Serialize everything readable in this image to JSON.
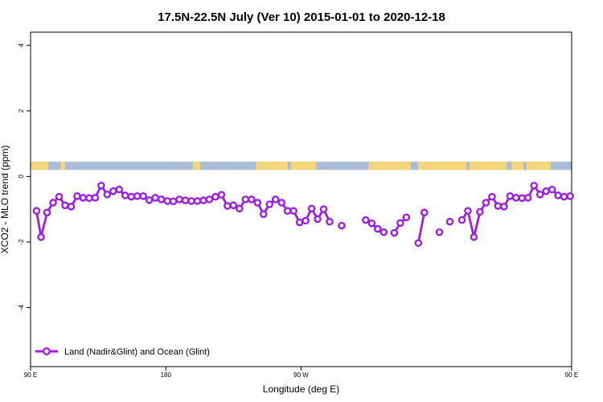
{
  "chart_data": {
    "type": "line",
    "title": "17.5N-22.5N July (Ver 10)   2015-01-01 to 2020-12-18",
    "xlabel": "Longitude (deg E)",
    "ylabel": "XCO2 - MLO trend (ppm)",
    "xlim": [
      90,
      450
    ],
    "ylim": [
      -5.8,
      4.4
    ],
    "xticks": [
      {
        "value": 90,
        "label": "90 E"
      },
      {
        "value": 180,
        "label": "180"
      },
      {
        "value": 270,
        "label": "90 W"
      },
      {
        "value": 450,
        "label": "90 E"
      },
      {
        "value": 540,
        "label": "180"
      }
    ],
    "yticks": [
      {
        "value": 4,
        "label": "4"
      },
      {
        "value": 2,
        "label": "2"
      },
      {
        "value": 0,
        "label": "0"
      },
      {
        "value": -2,
        "label": "-2"
      },
      {
        "value": -4,
        "label": "-4"
      }
    ],
    "colors": {
      "series": "#9b1fe8",
      "land": "#f5d67a",
      "ocean": "#a9bcd8"
    },
    "land_ocean_strip": {
      "y_range": [
        0.2,
        0.45
      ],
      "land_segments": [
        [
          90,
          102
        ],
        [
          110,
          113
        ],
        [
          198,
          203
        ],
        [
          240,
          261
        ],
        [
          263,
          280
        ],
        [
          315,
          332
        ],
        [
          332,
          343
        ],
        [
          348,
          355
        ],
        [
          355,
          380
        ],
        [
          382,
          407
        ],
        [
          410,
          418
        ],
        [
          420,
          436
        ]
      ]
    },
    "series": [
      {
        "name": "Land (Nadir&Glint) and Ocean (Glint)",
        "segments": [
          [
            [
              94,
              -1.05
            ],
            [
              97,
              -1.85
            ],
            [
              101,
              -1.1
            ],
            [
              105,
              -0.8
            ],
            [
              109,
              -0.62
            ],
            [
              113,
              -0.88
            ],
            [
              117,
              -0.92
            ],
            [
              121,
              -0.6
            ],
            [
              125,
              -0.65
            ],
            [
              129,
              -0.66
            ],
            [
              133,
              -0.65
            ],
            [
              137,
              -0.28
            ],
            [
              141,
              -0.55
            ],
            [
              145,
              -0.45
            ],
            [
              149,
              -0.4
            ],
            [
              153,
              -0.58
            ],
            [
              157,
              -0.62
            ],
            [
              161,
              -0.6
            ],
            [
              165,
              -0.6
            ],
            [
              169,
              -0.72
            ],
            [
              173,
              -0.65
            ],
            [
              177,
              -0.7
            ],
            [
              181,
              -0.75
            ],
            [
              185,
              -0.76
            ],
            [
              189,
              -0.7
            ],
            [
              193,
              -0.73
            ],
            [
              197,
              -0.75
            ],
            [
              201,
              -0.75
            ],
            [
              205,
              -0.73
            ],
            [
              209,
              -0.7
            ],
            [
              213,
              -0.62
            ],
            [
              217,
              -0.56
            ],
            [
              221,
              -0.9
            ],
            [
              225,
              -0.88
            ],
            [
              229,
              -0.98
            ],
            [
              233,
              -0.7
            ],
            [
              237,
              -0.7
            ],
            [
              241,
              -0.8
            ],
            [
              245,
              -1.15
            ],
            [
              249,
              -0.85
            ],
            [
              253,
              -0.7
            ],
            [
              257,
              -0.8
            ],
            [
              261,
              -1.05
            ],
            [
              265,
              -1.05
            ],
            [
              269,
              -1.4
            ],
            [
              273,
              -1.35
            ],
            [
              277,
              -0.98
            ],
            [
              281,
              -1.3
            ],
            [
              285,
              -1.0
            ],
            [
              289,
              -1.38
            ]
          ],
          [
            [
              297,
              -1.5
            ]
          ],
          [
            [
              313,
              -1.33
            ],
            [
              317,
              -1.43
            ],
            [
              321,
              -1.6
            ],
            [
              325,
              -1.7
            ]
          ],
          [
            [
              332,
              -1.72
            ],
            [
              336,
              -1.42
            ],
            [
              340,
              -1.25
            ]
          ],
          [
            [
              348,
              -2.03
            ],
            [
              352,
              -1.1
            ]
          ],
          [
            [
              362,
              -1.7
            ]
          ],
          [
            [
              369,
              -1.38
            ]
          ],
          [
            [
              377,
              -1.33
            ],
            [
              381,
              -1.05
            ],
            [
              385,
              -1.85
            ],
            [
              389,
              -1.08
            ],
            [
              393,
              -0.8
            ],
            [
              397,
              -0.62
            ],
            [
              401,
              -0.9
            ],
            [
              405,
              -0.92
            ],
            [
              409,
              -0.6
            ],
            [
              413,
              -0.65
            ],
            [
              417,
              -0.66
            ],
            [
              421,
              -0.65
            ],
            [
              425,
              -0.28
            ],
            [
              429,
              -0.55
            ],
            [
              433,
              -0.45
            ],
            [
              437,
              -0.4
            ],
            [
              441,
              -0.58
            ],
            [
              445,
              -0.62
            ],
            [
              449,
              -0.6
            ]
          ]
        ]
      }
    ],
    "legend_position": "bottom-left",
    "grid": false
  }
}
